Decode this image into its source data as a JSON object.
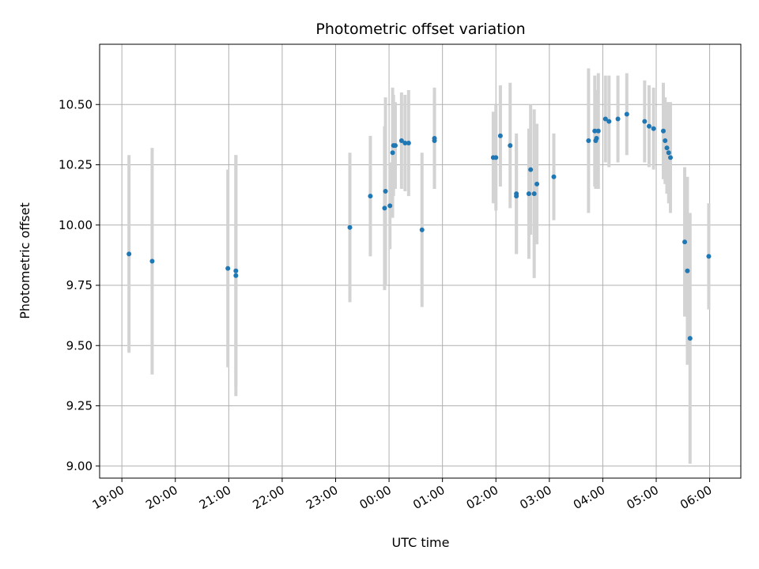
{
  "chart_data": {
    "type": "scatter",
    "title": "Photometric offset variation",
    "xlabel": "UTC time",
    "ylabel": "Photometric offset",
    "grid": true,
    "ylim": [
      8.95,
      10.75
    ],
    "xlim": [
      "18:35",
      "06:35"
    ],
    "x_ticks": [
      "19:00",
      "20:00",
      "21:00",
      "22:00",
      "23:00",
      "00:00",
      "01:00",
      "02:00",
      "03:00",
      "04:00",
      "05:00",
      "06:00"
    ],
    "y_ticks": [
      "9.00",
      "9.25",
      "9.50",
      "9.75",
      "10.00",
      "10.25",
      "10.50"
    ],
    "colors": {
      "point": "#1f77b4",
      "errorbar": "#d3d3d3",
      "grid": "#b0b0b0"
    },
    "points": [
      {
        "time": "19:08",
        "y": 9.88,
        "err": 0.41
      },
      {
        "time": "19:34",
        "y": 9.85,
        "err": 0.47
      },
      {
        "time": "20:59",
        "y": 9.82,
        "err": 0.41
      },
      {
        "time": "21:08",
        "y": 9.81,
        "err": 0.48
      },
      {
        "time": "21:08",
        "y": 9.79,
        "err": 0.5
      },
      {
        "time": "23:16",
        "y": 9.99,
        "err": 0.31
      },
      {
        "time": "23:39",
        "y": 10.12,
        "err": 0.25
      },
      {
        "time": "23:55",
        "y": 10.07,
        "err": 0.34
      },
      {
        "time": "23:56",
        "y": 10.14,
        "err": 0.39
      },
      {
        "time": "00:01",
        "y": 10.08,
        "err": 0.18
      },
      {
        "time": "00:04",
        "y": 10.3,
        "err": 0.27
      },
      {
        "time": "00:05",
        "y": 10.33,
        "err": 0.21
      },
      {
        "time": "00:07",
        "y": 10.33,
        "err": 0.18
      },
      {
        "time": "00:14",
        "y": 10.35,
        "err": 0.2
      },
      {
        "time": "00:18",
        "y": 10.34,
        "err": 0.2
      },
      {
        "time": "00:22",
        "y": 10.34,
        "err": 0.22
      },
      {
        "time": "00:37",
        "y": 9.98,
        "err": 0.32
      },
      {
        "time": "00:51",
        "y": 10.36,
        "err": 0.21
      },
      {
        "time": "00:51",
        "y": 10.35,
        "err": 0.2
      },
      {
        "time": "01:57",
        "y": 10.28,
        "err": 0.19
      },
      {
        "time": "02:00",
        "y": 10.28,
        "err": 0.22
      },
      {
        "time": "02:05",
        "y": 10.37,
        "err": 0.21
      },
      {
        "time": "02:16",
        "y": 10.33,
        "err": 0.26
      },
      {
        "time": "02:23",
        "y": 10.12,
        "err": 0.24
      },
      {
        "time": "02:23",
        "y": 10.13,
        "err": 0.25
      },
      {
        "time": "02:37",
        "y": 10.13,
        "err": 0.27
      },
      {
        "time": "02:39",
        "y": 10.23,
        "err": 0.27
      },
      {
        "time": "02:43",
        "y": 10.13,
        "err": 0.35
      },
      {
        "time": "02:46",
        "y": 10.17,
        "err": 0.25
      },
      {
        "time": "03:05",
        "y": 10.2,
        "err": 0.18
      },
      {
        "time": "03:44",
        "y": 10.35,
        "err": 0.3
      },
      {
        "time": "03:51",
        "y": 10.39,
        "err": 0.23
      },
      {
        "time": "03:52",
        "y": 10.35,
        "err": 0.2
      },
      {
        "time": "03:53",
        "y": 10.36,
        "err": 0.2
      },
      {
        "time": "03:55",
        "y": 10.39,
        "err": 0.24
      },
      {
        "time": "04:03",
        "y": 10.44,
        "err": 0.18
      },
      {
        "time": "04:07",
        "y": 10.43,
        "err": 0.19
      },
      {
        "time": "04:17",
        "y": 10.44,
        "err": 0.18
      },
      {
        "time": "04:27",
        "y": 10.46,
        "err": 0.17
      },
      {
        "time": "04:47",
        "y": 10.43,
        "err": 0.17
      },
      {
        "time": "04:52",
        "y": 10.41,
        "err": 0.17
      },
      {
        "time": "04:57",
        "y": 10.4,
        "err": 0.17
      },
      {
        "time": "05:08",
        "y": 10.39,
        "err": 0.2
      },
      {
        "time": "05:10",
        "y": 10.35,
        "err": 0.18
      },
      {
        "time": "05:12",
        "y": 10.32,
        "err": 0.19
      },
      {
        "time": "05:14",
        "y": 10.3,
        "err": 0.21
      },
      {
        "time": "05:16",
        "y": 10.28,
        "err": 0.23
      },
      {
        "time": "05:32",
        "y": 9.93,
        "err": 0.31
      },
      {
        "time": "05:35",
        "y": 9.81,
        "err": 0.39
      },
      {
        "time": "05:38",
        "y": 9.53,
        "err": 0.52
      },
      {
        "time": "05:59",
        "y": 9.87,
        "err": 0.22
      }
    ]
  }
}
